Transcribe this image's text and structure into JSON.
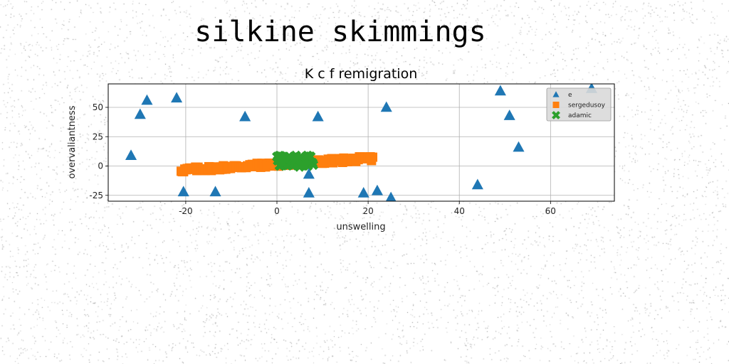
{
  "page": {
    "suptitle": "silkine skimmings"
  },
  "colors": {
    "series_e": "#1f77b4",
    "series_sergedusoy": "#ff7f0e",
    "series_adamic": "#2ca02c",
    "grid": "#b0b0b0",
    "legend_bg": "#d9d9d9"
  },
  "chart_data": {
    "type": "scatter",
    "title": "K c f remigration",
    "xlabel": "unswelling",
    "ylabel": "overvaliantness",
    "xlim": [
      -37,
      74
    ],
    "ylim": [
      -30,
      70
    ],
    "xticks": [
      -20,
      0,
      20,
      40,
      60
    ],
    "yticks": [
      -25,
      0,
      25,
      50
    ],
    "grid": true,
    "legend_placement": "upper right",
    "series": [
      {
        "name": "e",
        "marker": "triangle",
        "color": "#1f77b4",
        "points": [
          [
            -32,
            9
          ],
          [
            -30,
            44
          ],
          [
            -28.5,
            56
          ],
          [
            -22,
            58
          ],
          [
            -20.5,
            -22
          ],
          [
            -13.5,
            -22
          ],
          [
            -7,
            42
          ],
          [
            7,
            -7
          ],
          [
            7,
            -23
          ],
          [
            9,
            42
          ],
          [
            19,
            -23
          ],
          [
            22,
            -21
          ],
          [
            24,
            50
          ],
          [
            25,
            -27
          ],
          [
            44,
            -16
          ],
          [
            49,
            64
          ],
          [
            51,
            43
          ],
          [
            53,
            16
          ],
          [
            69,
            66
          ]
        ]
      },
      {
        "name": "sergedusoy",
        "marker": "square",
        "color": "#ff7f0e",
        "x_range": [
          -21,
          21
        ],
        "line": {
          "slope": 0.24,
          "intercept": 1.5
        },
        "count": 160
      },
      {
        "name": "adamic",
        "marker": "x",
        "color": "#2ca02c",
        "x_range": [
          0,
          8
        ],
        "y_center": 4,
        "y_spread": 6,
        "count": 60
      }
    ]
  }
}
